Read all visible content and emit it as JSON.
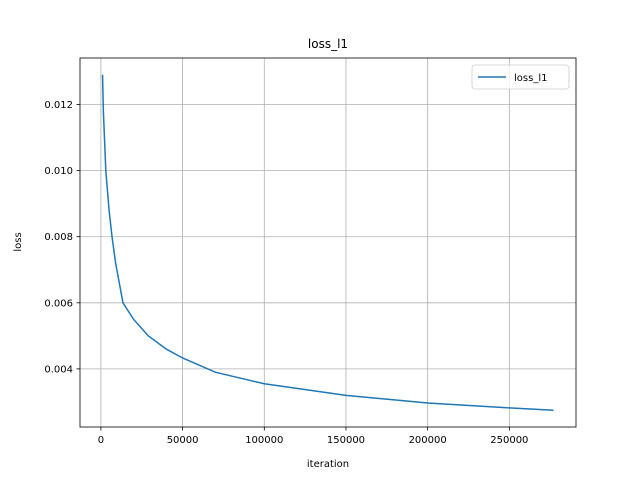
{
  "chart_data": {
    "type": "line",
    "title": "loss_l1",
    "xlabel": "iteration",
    "ylabel": "loss",
    "x": [
      1000,
      1500,
      2000,
      3000,
      4000,
      5000,
      6800,
      9000,
      13500,
      20000,
      29000,
      40000,
      50000,
      70000,
      100000,
      150000,
      200000,
      250000,
      277000
    ],
    "series": [
      {
        "name": "loss_l1",
        "color": "#1f77b4",
        "values": [
          0.0129,
          0.0118,
          0.0112,
          0.01,
          0.0094,
          0.0088,
          0.008,
          0.0072,
          0.006,
          0.0055,
          0.005,
          0.0046,
          0.00433,
          0.0039,
          0.00355,
          0.0032,
          0.00297,
          0.00282,
          0.00275
        ]
      }
    ],
    "xlim": [
      -12800,
      290800
    ],
    "ylim": [
      0.002242,
      0.013408
    ],
    "xticks": [
      0,
      50000,
      100000,
      150000,
      200000,
      250000
    ],
    "yticks": [
      0.004,
      0.006,
      0.008,
      {
        "value": 0.01,
        "label": "0.010"
      },
      0.012
    ],
    "grid": true,
    "legend": "upper right"
  }
}
